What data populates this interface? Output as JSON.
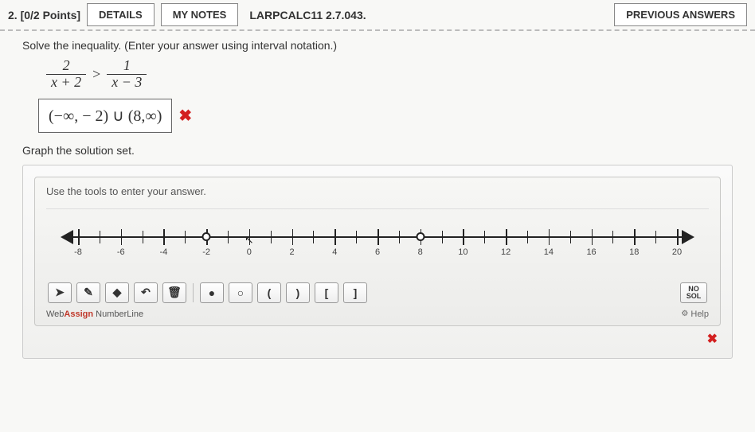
{
  "header": {
    "question_label": "2. [0/2 Points]",
    "details_btn": "DETAILS",
    "notes_btn": "MY NOTES",
    "assignment_code": "LARPCALC11 2.7.043.",
    "prev_answers_btn": "PREVIOUS ANSWERS"
  },
  "problem": {
    "instruction": "Solve the inequality. (Enter your answer using interval notation.)",
    "frac1_num": "2",
    "frac1_den": "x + 2",
    "operator": ">",
    "frac2_num": "1",
    "frac2_den": "x − 3",
    "student_answer": "(−∞, − 2) ∪ (8,∞)",
    "wrong_mark": "✖",
    "graph_instruction": "Graph the solution set."
  },
  "graph_tool": {
    "title": "Use the tools to enter your answer.",
    "axis": {
      "min": -8,
      "max": 20,
      "label_step": 2,
      "tick_step": 1
    },
    "open_points": [
      -2,
      8
    ],
    "cursor_at": 0,
    "toolbar": {
      "pointer": "➤",
      "pencil": "✎",
      "eraser": "◆",
      "undo": "↶",
      "trash": "🗑",
      "closed_dot": "●",
      "open_dot": "○",
      "lparen": "(",
      "rparen": ")",
      "lbracket": "[",
      "rbracket": "]",
      "nosol": "NO SOL"
    },
    "brand_prefix": "Web",
    "brand_bold": "Assign",
    "brand_suffix": " NumberLine",
    "help_label": "Help",
    "panel_wrong": "✖"
  },
  "colors": {
    "wrong": "#d32020",
    "axis": "#222222",
    "panel_bg": "#f0f0ee"
  }
}
